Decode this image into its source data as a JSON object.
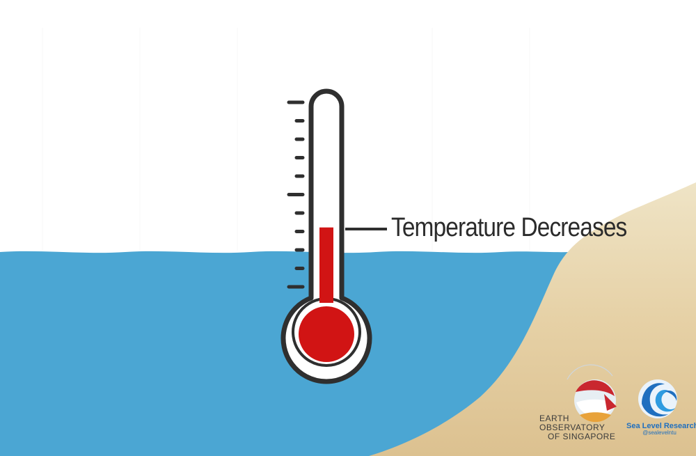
{
  "annotation": {
    "text": "Temperature Decreases"
  },
  "thermometer": {
    "mercury_level_fraction": 0.38,
    "tick_count": 11
  },
  "logos": {
    "eos": {
      "line1": "EARTH",
      "line2": "OBSERVATORY",
      "line3": "OF SINGAPORE"
    },
    "slr": {
      "title": "Sea Level Research",
      "handle": "@sealevelntu"
    }
  },
  "colors": {
    "sea": "#4ba6d3",
    "sand": "#e8d6ad",
    "mercury": "#d11414",
    "outline": "#2f2f2f"
  }
}
